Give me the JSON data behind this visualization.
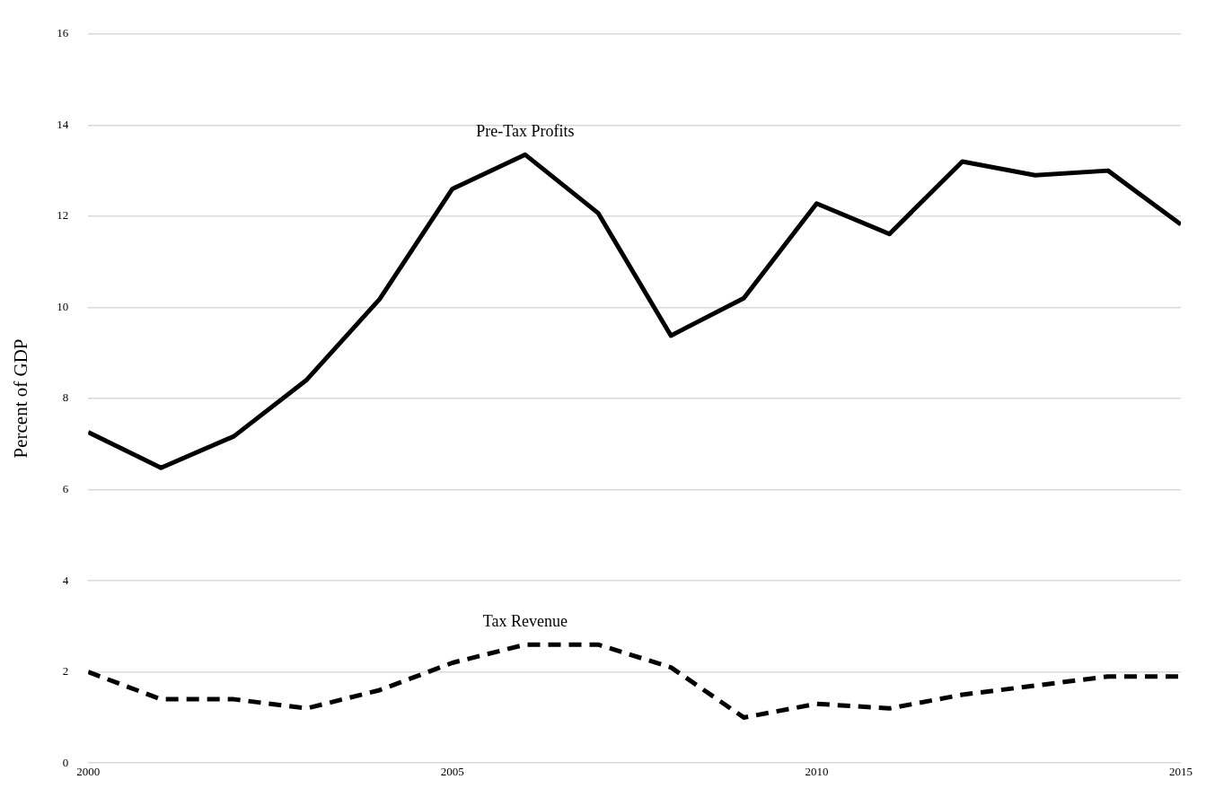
{
  "chart_data": {
    "type": "line",
    "ylabel": "Percent of GDP",
    "x": [
      2000,
      2001,
      2002,
      2003,
      2004,
      2005,
      2006,
      2007,
      2008,
      2009,
      2010,
      2011,
      2012,
      2013,
      2014,
      2015
    ],
    "series": [
      {
        "name": "Pre-Tax Profits",
        "color": "#000000",
        "line_style": "solid",
        "values": [
          7.26,
          6.48,
          7.17,
          8.41,
          10.18,
          12.6,
          13.35,
          12.07,
          9.38,
          10.2,
          12.28,
          11.61,
          13.2,
          12.9,
          13.0,
          11.82
        ]
      },
      {
        "name": "Tax Revenue",
        "color": "#000000",
        "line_style": "dashed",
        "values": [
          2.0,
          1.4,
          1.4,
          1.2,
          1.6,
          2.2,
          2.6,
          2.6,
          2.1,
          1.0,
          1.3,
          1.2,
          1.5,
          1.7,
          1.9,
          1.9
        ]
      }
    ],
    "xlim": [
      2000,
      2015
    ],
    "xticks": [
      2000,
      2005,
      2010,
      2015
    ],
    "ylim": [
      0,
      16
    ],
    "yticks": [
      0,
      2,
      4,
      6,
      8,
      10,
      12,
      14,
      16
    ],
    "grid": "y",
    "legend": false,
    "marker": "none"
  }
}
